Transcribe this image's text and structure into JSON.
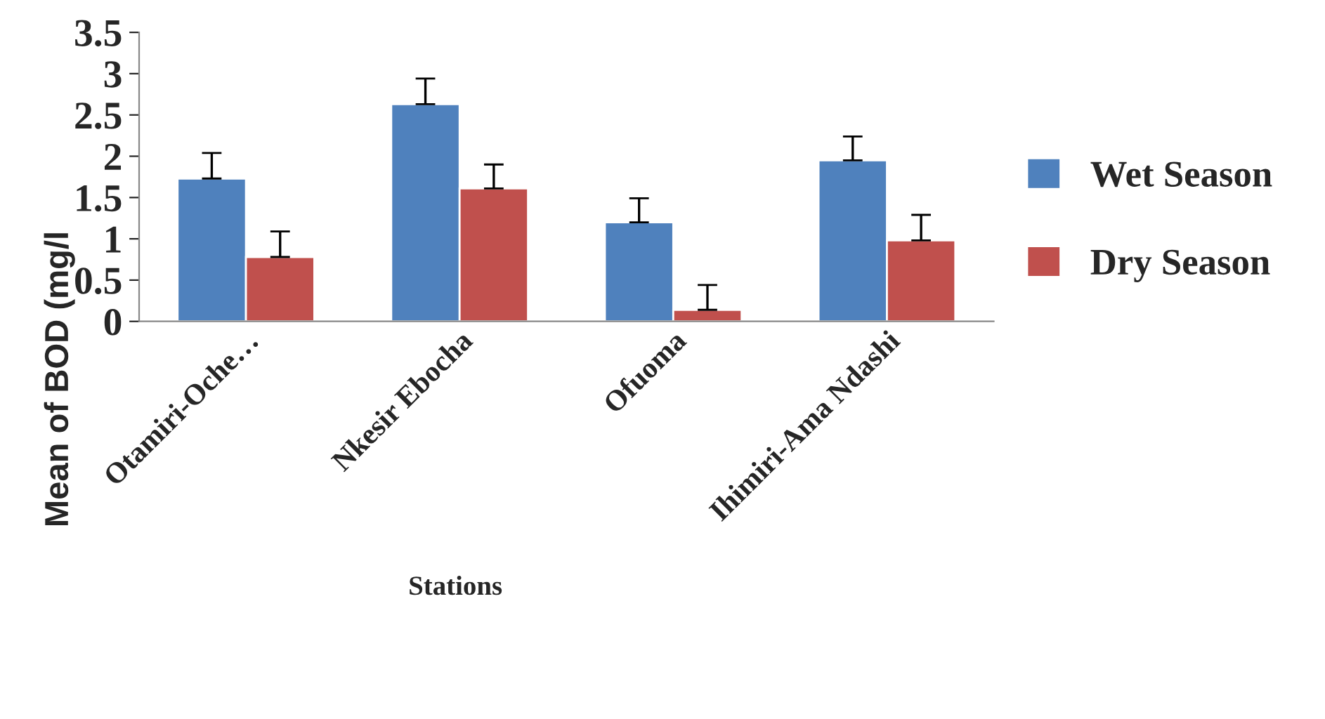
{
  "chart_data": {
    "type": "bar",
    "xlabel": "Stations",
    "ylabel": "Mean of BOD (mg/l",
    "categories": [
      "Otamiri-Oche…",
      "Nkesir Ebocha",
      "Ofuoma",
      "Ihimiri-Ama Ndashi"
    ],
    "series": [
      {
        "name": "Wet Season",
        "color": "#4f81bd",
        "values": [
          1.73,
          2.63,
          1.2,
          1.95
        ],
        "errors": [
          [
            1.73,
            2.04
          ],
          [
            2.63,
            2.94
          ],
          [
            1.2,
            1.49
          ],
          [
            1.95,
            2.24
          ]
        ]
      },
      {
        "name": "Dry Season",
        "color": "#c0504d",
        "values": [
          0.78,
          1.61,
          0.14,
          0.98
        ],
        "errors": [
          [
            0.78,
            1.09
          ],
          [
            1.61,
            1.9
          ],
          [
            0.14,
            0.44
          ],
          [
            0.98,
            1.29
          ]
        ]
      }
    ],
    "ylim": [
      0,
      3.5
    ],
    "yticks": [
      0,
      0.5,
      1,
      1.5,
      2,
      2.5,
      3,
      3.5
    ],
    "grid": false,
    "legend": "right"
  }
}
